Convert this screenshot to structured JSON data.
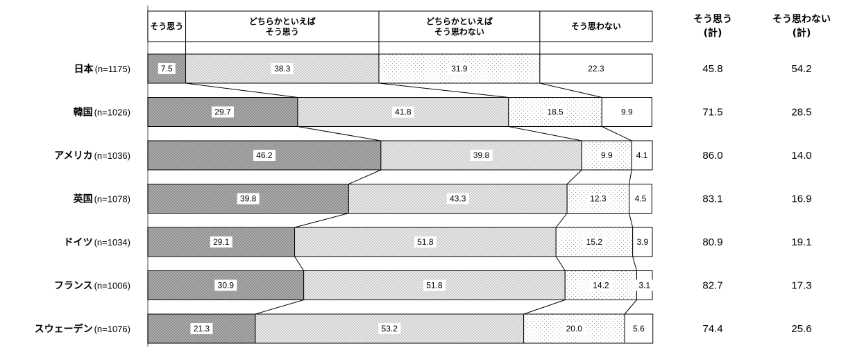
{
  "chart_data": {
    "type": "bar",
    "stacked": true,
    "orientation": "horizontal",
    "percent_scale": [
      0,
      100
    ],
    "legend_placement": "top",
    "categories": [
      {
        "label": "日本",
        "n": "(n=1175)"
      },
      {
        "label": "韓国",
        "n": "(n=1026)"
      },
      {
        "label": "アメリカ",
        "n": "(n=1036)"
      },
      {
        "label": "英国",
        "n": "(n=1078)"
      },
      {
        "label": "ドイツ",
        "n": "(n=1034)"
      },
      {
        "label": "フランス",
        "n": "(n=1006)"
      },
      {
        "label": "スウェーデン",
        "n": "(n=1076)"
      }
    ],
    "series": [
      {
        "name": "そう思う",
        "values": [
          7.5,
          29.7,
          46.2,
          39.8,
          29.1,
          30.9,
          21.3
        ]
      },
      {
        "name": "どちらかといえば\nそう思う",
        "values": [
          38.3,
          41.8,
          39.8,
          43.3,
          51.8,
          51.8,
          53.2
        ]
      },
      {
        "name": "どちらかといえば\nそう思わない",
        "values": [
          31.9,
          18.5,
          9.9,
          12.3,
          15.2,
          14.2,
          20.0
        ]
      },
      {
        "name": "そう思わない",
        "values": [
          22.3,
          9.9,
          4.1,
          4.5,
          3.9,
          3.1,
          5.6
        ]
      }
    ],
    "totals": {
      "headers": [
        "そう思う\n(計)",
        "そう思わない\n(計)"
      ],
      "agree": [
        "45.8",
        "71.5",
        "86.0",
        "83.1",
        "80.9",
        "82.7",
        "74.4"
      ],
      "disagree": [
        "54.2",
        "28.5",
        "14.0",
        "16.9",
        "19.1",
        "17.3",
        "25.6"
      ]
    },
    "colors": {
      "agree_fill": "#8c8c8c",
      "agree_dot": "#c8c8c8",
      "somewhat_agree_fill": "#ececec",
      "somewhat_agree_dot": "#9a9a9a",
      "somewhat_disagree_fill": "#ffffff",
      "somewhat_disagree_dot": "#9a9a9a",
      "disagree_fill": "#ffffff",
      "border": "#000000"
    }
  }
}
